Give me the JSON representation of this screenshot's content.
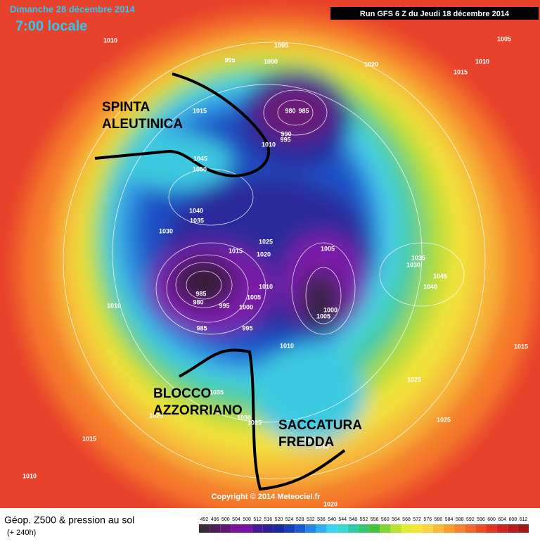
{
  "header": {
    "date": "Dimanche 28 décembre 2014",
    "time": "7:00 locale",
    "run": "Run GFS 6 Z du Jeudi 18 décembre 2014"
  },
  "annotations": [
    {
      "lines": [
        "SPINTA",
        "ALEUTINICA"
      ]
    },
    {
      "lines": [
        "BLOCCO",
        "AZZORRIANO"
      ]
    },
    {
      "lines": [
        "SACCATURA",
        "FREDDA"
      ]
    }
  ],
  "isobars": [
    1010,
    1005,
    1005,
    1015,
    1010,
    995,
    1000,
    980,
    985,
    990,
    995,
    1010,
    1015,
    1045,
    1050,
    1040,
    1035,
    1030,
    1025,
    1015,
    1020,
    1005,
    1035,
    1030,
    1045,
    1040,
    1010,
    1005,
    985,
    980,
    995,
    1000,
    1000,
    1005,
    1010,
    995,
    985,
    1010,
    1015,
    1025,
    1035,
    1030,
    1025,
    1025,
    1015,
    1025,
    1015,
    1010,
    1010,
    1020,
    1020
  ],
  "copyright": "Copyright © 2014 Meteociel.fr",
  "legend": {
    "title": "Géop. Z500 & pression au sol",
    "subtitle": "(+ 240h)",
    "scale": [
      492,
      496,
      500,
      504,
      508,
      512,
      516,
      520,
      524,
      528,
      532,
      536,
      540,
      544,
      548,
      552,
      556,
      560,
      564,
      568,
      572,
      576,
      580,
      584,
      588,
      592,
      596,
      600,
      604,
      608,
      612
    ]
  }
}
